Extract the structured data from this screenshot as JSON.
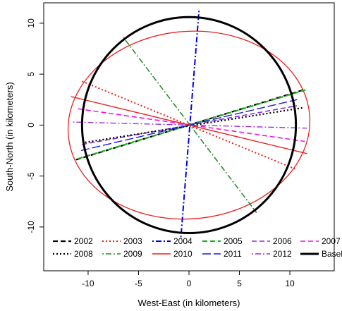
{
  "chart_data": {
    "type": "line",
    "xlabel": "West-East (in kilometers)",
    "ylabel": "South-North (in kilometers)",
    "xlim": [
      -14.4,
      14.4
    ],
    "ylim": [
      -14.3,
      12.0
    ],
    "xticks": [
      -10,
      -5,
      0,
      5,
      10
    ],
    "xtick_labels": [
      "-10",
      "-5",
      "0",
      "5",
      "10"
    ],
    "yticks": [
      -10,
      -5,
      0,
      5,
      10
    ],
    "ytick_labels": [
      "-10",
      "-5",
      "0",
      "5",
      "10"
    ],
    "grid": false,
    "legend_position": "bottom",
    "series": [
      {
        "name": "2002",
        "color": "#000000",
        "dash": "dashed",
        "width": 2.2,
        "x": [
          -11.2,
          11.5
        ],
        "y": [
          -3.4,
          3.5
        ]
      },
      {
        "name": "2003",
        "color": "#e8201e",
        "dash": "dotted",
        "width": 2.0,
        "x": [
          -10.6,
          10.5
        ],
        "y": [
          4.3,
          -4.3
        ]
      },
      {
        "name": "2004",
        "color": "#0000e0",
        "dash": "dotdash",
        "width": 2.0,
        "x": [
          -0.8,
          1.0
        ],
        "y": [
          -11.0,
          11.3
        ]
      },
      {
        "name": "2005",
        "color": "#22b022",
        "dash": "dashed",
        "width": 2.2,
        "x": [
          -11.0,
          11.7
        ],
        "y": [
          -3.3,
          3.5
        ]
      },
      {
        "name": "2006",
        "color": "#8a2be2",
        "dash": "dashed",
        "width": 1.6,
        "x": [
          -10.6,
          10.7
        ],
        "y": [
          -1.9,
          1.9
        ]
      },
      {
        "name": "2007",
        "color": "#ee10ee",
        "dash": "dashed",
        "width": 1.6,
        "x": [
          -11.0,
          11.5
        ],
        "y": [
          1.6,
          -1.6
        ]
      },
      {
        "name": "2008",
        "color": "#000000",
        "dash": "dotted",
        "width": 2.2,
        "x": [
          -10.3,
          11.3
        ],
        "y": [
          -1.7,
          1.7
        ]
      },
      {
        "name": "2009",
        "color": "#2e8b2e",
        "dash": "dotdash",
        "width": 1.6,
        "x": [
          -6.5,
          6.7
        ],
        "y": [
          8.6,
          -8.6
        ]
      },
      {
        "name": "2010",
        "color": "#e8201e",
        "dash": "solid",
        "width": 1.4,
        "x": [
          -11.7,
          11.7
        ],
        "y": [
          2.8,
          -2.8
        ]
      },
      {
        "name": "2011",
        "color": "#1a1ae0",
        "dash": "longdash",
        "width": 1.4,
        "x": [
          -10.7,
          10.7
        ],
        "y": [
          -2.5,
          2.5
        ]
      },
      {
        "name": "2012",
        "color": "#9932cc",
        "dash": "dotdash",
        "width": 1.4,
        "x": [
          -11.5,
          11.7
        ],
        "y": [
          0.3,
          -0.3
        ]
      }
    ],
    "baseline": {
      "name": "Baseline",
      "color": "#000000",
      "width": 3.0,
      "center": [
        0,
        0
      ],
      "rx": 10.6,
      "ry": 10.6
    },
    "ellipse_2010": {
      "color": "#e8201e",
      "width": 1.3,
      "center": [
        0,
        0
      ],
      "rx": 12.0,
      "ry": 9.2,
      "angle_deg": 5
    },
    "legend": [
      {
        "label": "2002",
        "color": "#000000",
        "dash": "dashed",
        "width": 2.2
      },
      {
        "label": "2003",
        "color": "#e8201e",
        "dash": "dotted",
        "width": 2.0
      },
      {
        "label": "2004",
        "color": "#0000e0",
        "dash": "dotdash",
        "width": 2.0
      },
      {
        "label": "2005",
        "color": "#22b022",
        "dash": "dashed",
        "width": 2.2
      },
      {
        "label": "2006",
        "color": "#8a2be2",
        "dash": "dashed",
        "width": 1.6
      },
      {
        "label": "2007",
        "color": "#ee10ee",
        "dash": "dashed",
        "width": 1.6
      },
      {
        "label": "2008",
        "color": "#000000",
        "dash": "dotted",
        "width": 2.2
      },
      {
        "label": "2009",
        "color": "#2e8b2e",
        "dash": "dotdash",
        "width": 1.6
      },
      {
        "label": "2010",
        "color": "#e8201e",
        "dash": "solid",
        "width": 1.4
      },
      {
        "label": "2011",
        "color": "#1a1ae0",
        "dash": "longdash",
        "width": 1.4
      },
      {
        "label": "2012",
        "color": "#9932cc",
        "dash": "dotdash",
        "width": 1.4
      },
      {
        "label": "Baseline",
        "color": "#000000",
        "dash": "solid",
        "width": 3.0
      }
    ]
  }
}
